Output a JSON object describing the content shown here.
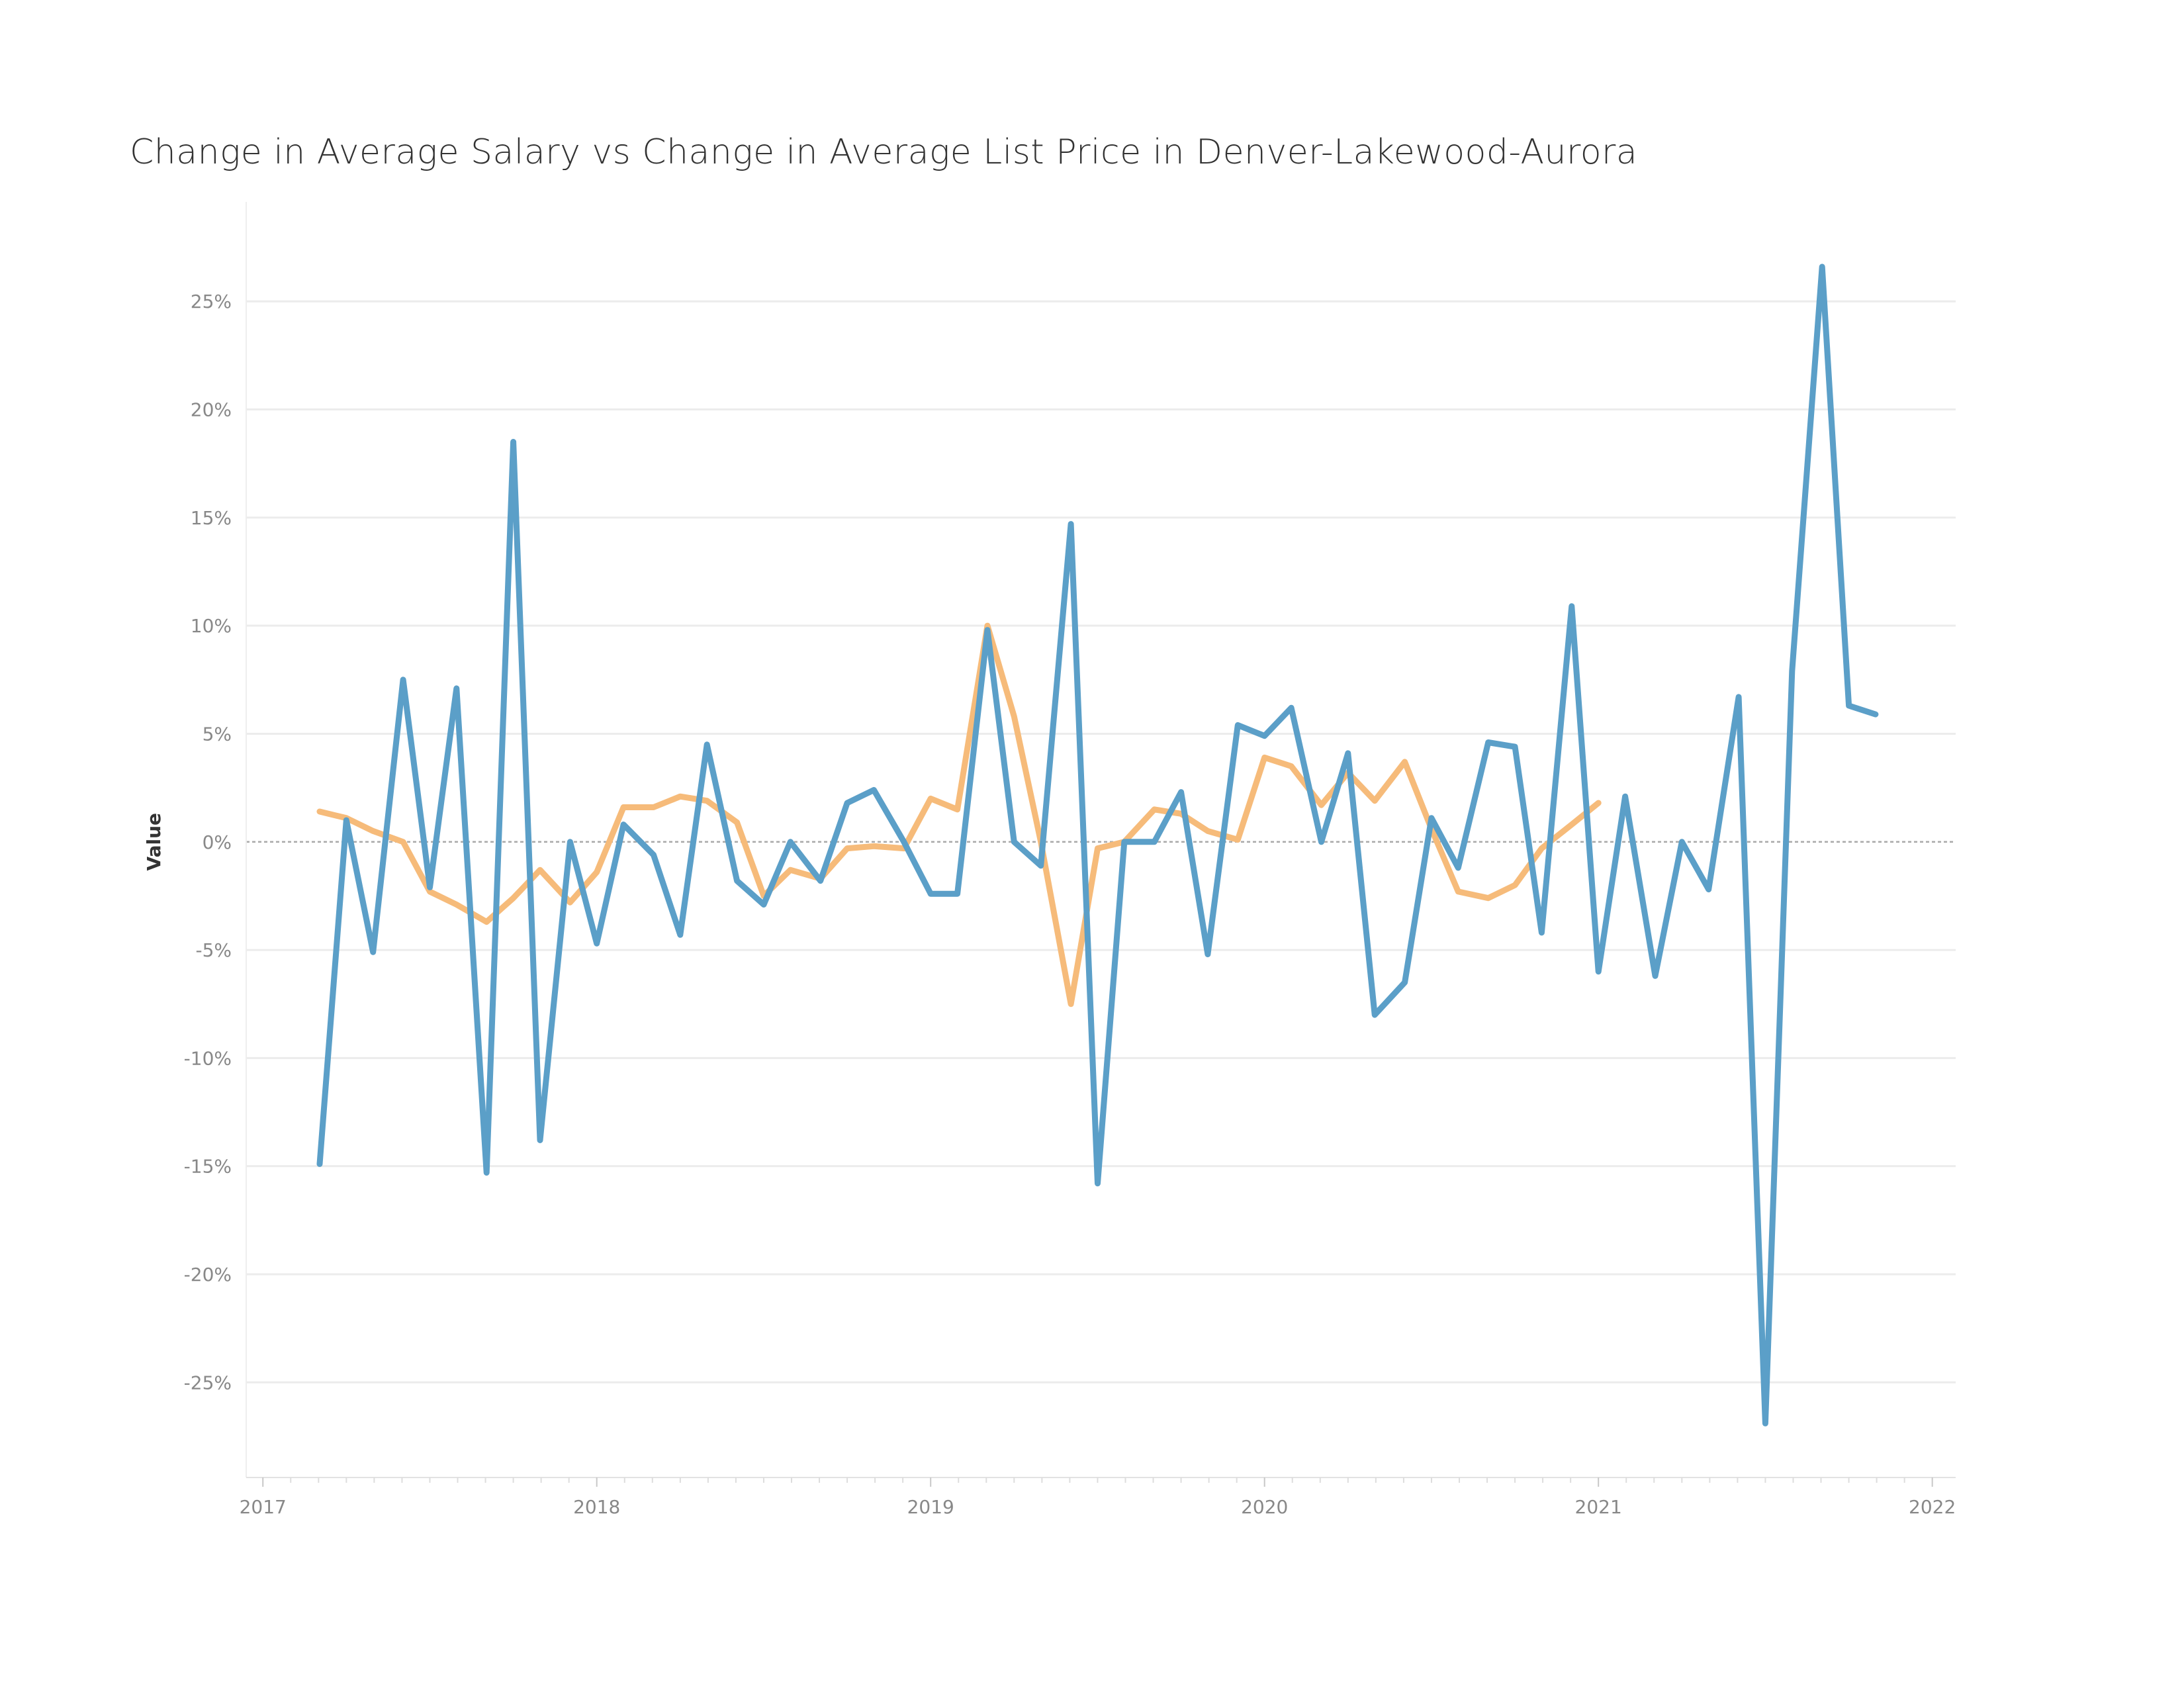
{
  "chart_data": {
    "type": "line",
    "title": "Change in Average Salary vs Change in Average List Price in Denver-Lakewood-Aurora",
    "xlabel": "",
    "ylabel": "Value",
    "y_tick_labels": [
      "-25%",
      "-20%",
      "-15%",
      "-10%",
      "-5%",
      "0%",
      "5%",
      "10%",
      "15%",
      "20%",
      "25%"
    ],
    "y_ticks": [
      -25,
      -20,
      -15,
      -10,
      -5,
      0,
      5,
      10,
      15,
      20,
      25
    ],
    "x_tick_labels": [
      "2017",
      "2018",
      "2019",
      "2020",
      "2021",
      "2022"
    ],
    "x_ticks": [
      2017,
      2018,
      2019,
      2020,
      2021,
      2022
    ],
    "xlim": [
      2016.95,
      2022.07
    ],
    "ylim": [
      -29.4,
      29.6
    ],
    "grid": true,
    "zero_line": true,
    "series": [
      {
        "color": "#5b9fc8",
        "points": [
          [
            2017.17,
            -14.9
          ],
          [
            2017.25,
            1.0
          ],
          [
            2017.33,
            -5.1
          ],
          [
            2017.42,
            7.5
          ],
          [
            2017.5,
            -2.1
          ],
          [
            2017.58,
            7.1
          ],
          [
            2017.67,
            -15.3
          ],
          [
            2017.75,
            18.5
          ],
          [
            2017.83,
            -13.8
          ],
          [
            2017.92,
            0.0
          ],
          [
            2018.0,
            -4.7
          ],
          [
            2018.08,
            0.8
          ],
          [
            2018.17,
            -0.6
          ],
          [
            2018.25,
            -4.3
          ],
          [
            2018.33,
            4.5
          ],
          [
            2018.42,
            -1.8
          ],
          [
            2018.5,
            -2.9
          ],
          [
            2018.58,
            0.0
          ],
          [
            2018.67,
            -1.8
          ],
          [
            2018.75,
            1.8
          ],
          [
            2018.83,
            2.4
          ],
          [
            2018.92,
            0.0
          ],
          [
            2019.0,
            -2.4
          ],
          [
            2019.08,
            -2.4
          ],
          [
            2019.17,
            9.8
          ],
          [
            2019.25,
            0.0
          ],
          [
            2019.33,
            -1.1
          ],
          [
            2019.42,
            14.7
          ],
          [
            2019.5,
            -15.8
          ],
          [
            2019.58,
            0.0
          ],
          [
            2019.67,
            0.0
          ],
          [
            2019.75,
            2.3
          ],
          [
            2019.83,
            -5.2
          ],
          [
            2019.92,
            5.4
          ],
          [
            2020.0,
            4.9
          ],
          [
            2020.08,
            6.2
          ],
          [
            2020.17,
            0.0
          ],
          [
            2020.25,
            4.1
          ],
          [
            2020.33,
            -8.0
          ],
          [
            2020.42,
            -6.5
          ],
          [
            2020.5,
            1.1
          ],
          [
            2020.58,
            -1.2
          ],
          [
            2020.67,
            4.6
          ],
          [
            2020.75,
            4.4
          ],
          [
            2020.83,
            -4.2
          ],
          [
            2020.92,
            10.9
          ],
          [
            2021.0,
            -6.0
          ],
          [
            2021.08,
            2.1
          ],
          [
            2021.17,
            -6.2
          ],
          [
            2021.25,
            0.0
          ],
          [
            2021.33,
            -2.2
          ],
          [
            2021.42,
            6.7
          ],
          [
            2021.5,
            -26.9
          ],
          [
            2021.58,
            7.9
          ],
          [
            2021.67,
            26.6
          ],
          [
            2021.75,
            6.3
          ],
          [
            2021.83,
            5.9
          ]
        ]
      },
      {
        "color": "#f6bb7a",
        "points": [
          [
            2017.17,
            1.4
          ],
          [
            2017.25,
            1.1
          ],
          [
            2017.33,
            0.5
          ],
          [
            2017.42,
            0.0
          ],
          [
            2017.5,
            -2.3
          ],
          [
            2017.58,
            -2.9
          ],
          [
            2017.67,
            -3.7
          ],
          [
            2017.75,
            -2.6
          ],
          [
            2017.83,
            -1.3
          ],
          [
            2017.92,
            -2.8
          ],
          [
            2018.0,
            -1.4
          ],
          [
            2018.08,
            1.6
          ],
          [
            2018.17,
            1.6
          ],
          [
            2018.25,
            2.1
          ],
          [
            2018.33,
            1.9
          ],
          [
            2018.42,
            0.9
          ],
          [
            2018.5,
            -2.5
          ],
          [
            2018.58,
            -1.3
          ],
          [
            2018.67,
            -1.7
          ],
          [
            2018.75,
            -0.3
          ],
          [
            2018.83,
            -0.2
          ],
          [
            2018.92,
            -0.3
          ],
          [
            2019.0,
            2.0
          ],
          [
            2019.08,
            1.5
          ],
          [
            2019.17,
            10.0
          ],
          [
            2019.25,
            5.8
          ],
          [
            2019.33,
            0.0
          ],
          [
            2019.42,
            -7.5
          ],
          [
            2019.5,
            -0.3
          ],
          [
            2019.58,
            0.0
          ],
          [
            2019.67,
            1.5
          ],
          [
            2019.75,
            1.3
          ],
          [
            2019.83,
            0.5
          ],
          [
            2019.92,
            0.1
          ],
          [
            2020.0,
            3.9
          ],
          [
            2020.08,
            3.5
          ],
          [
            2020.17,
            1.7
          ],
          [
            2020.25,
            3.2
          ],
          [
            2020.33,
            1.9
          ],
          [
            2020.42,
            3.7
          ],
          [
            2020.5,
            0.6
          ],
          [
            2020.58,
            -2.3
          ],
          [
            2020.67,
            -2.6
          ],
          [
            2020.75,
            -2.0
          ],
          [
            2020.83,
            -0.3
          ],
          [
            2020.92,
            0.8
          ],
          [
            2021.0,
            1.8
          ]
        ]
      }
    ]
  }
}
